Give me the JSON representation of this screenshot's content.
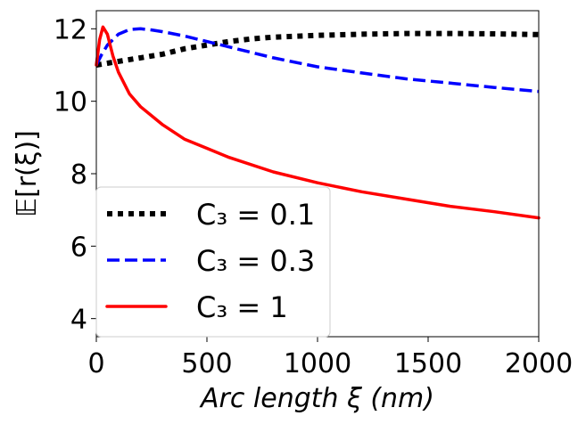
{
  "chart_data": {
    "type": "line",
    "xlabel": "Arc length ξ (nm)",
    "ylabel": "𝔼[r(ξ)]",
    "xlim": [
      0,
      2000
    ],
    "ylim": [
      3.5,
      12.5
    ],
    "xticks": [
      0,
      500,
      1000,
      1500,
      2000
    ],
    "yticks": [
      4,
      6,
      8,
      10,
      12
    ],
    "xtick_labels": [
      "0",
      "500",
      "1000",
      "1500",
      "2000"
    ],
    "ytick_labels": [
      "4",
      "6",
      "8",
      "10",
      "12"
    ],
    "grid": false,
    "legend_position": "lower-left",
    "series": [
      {
        "name": "C₃ = 0.1",
        "legend_label": "C₃ = 0.1",
        "color": "#000000",
        "style": "dotted",
        "x": [
          0,
          50,
          100,
          200,
          300,
          400,
          500,
          600,
          700,
          800,
          1000,
          1200,
          1400,
          1600,
          1800,
          2000
        ],
        "y": [
          11.0,
          11.05,
          11.1,
          11.2,
          11.3,
          11.45,
          11.55,
          11.65,
          11.72,
          11.77,
          11.82,
          11.85,
          11.87,
          11.87,
          11.86,
          11.84
        ]
      },
      {
        "name": "C₃ = 0.3",
        "legend_label": "C₃ = 0.3",
        "color": "#0000ff",
        "style": "dashed",
        "x": [
          0,
          25,
          50,
          100,
          150,
          200,
          250,
          300,
          400,
          500,
          600,
          800,
          1000,
          1200,
          1400,
          1600,
          1800,
          2000
        ],
        "y": [
          11.0,
          11.3,
          11.55,
          11.85,
          11.98,
          12.0,
          11.97,
          11.92,
          11.8,
          11.65,
          11.5,
          11.2,
          10.95,
          10.78,
          10.62,
          10.5,
          10.38,
          10.27
        ]
      },
      {
        "name": "C₃ = 1",
        "legend_label": "C₃ = 1",
        "color": "#ff0000",
        "style": "solid",
        "x": [
          0,
          15,
          30,
          50,
          75,
          100,
          150,
          200,
          300,
          400,
          500,
          600,
          800,
          1000,
          1200,
          1400,
          1600,
          1800,
          2000
        ],
        "y": [
          11.0,
          11.7,
          12.05,
          11.85,
          11.25,
          10.8,
          10.2,
          9.85,
          9.35,
          8.95,
          8.7,
          8.45,
          8.05,
          7.75,
          7.5,
          7.3,
          7.1,
          6.95,
          6.78
        ]
      }
    ]
  }
}
